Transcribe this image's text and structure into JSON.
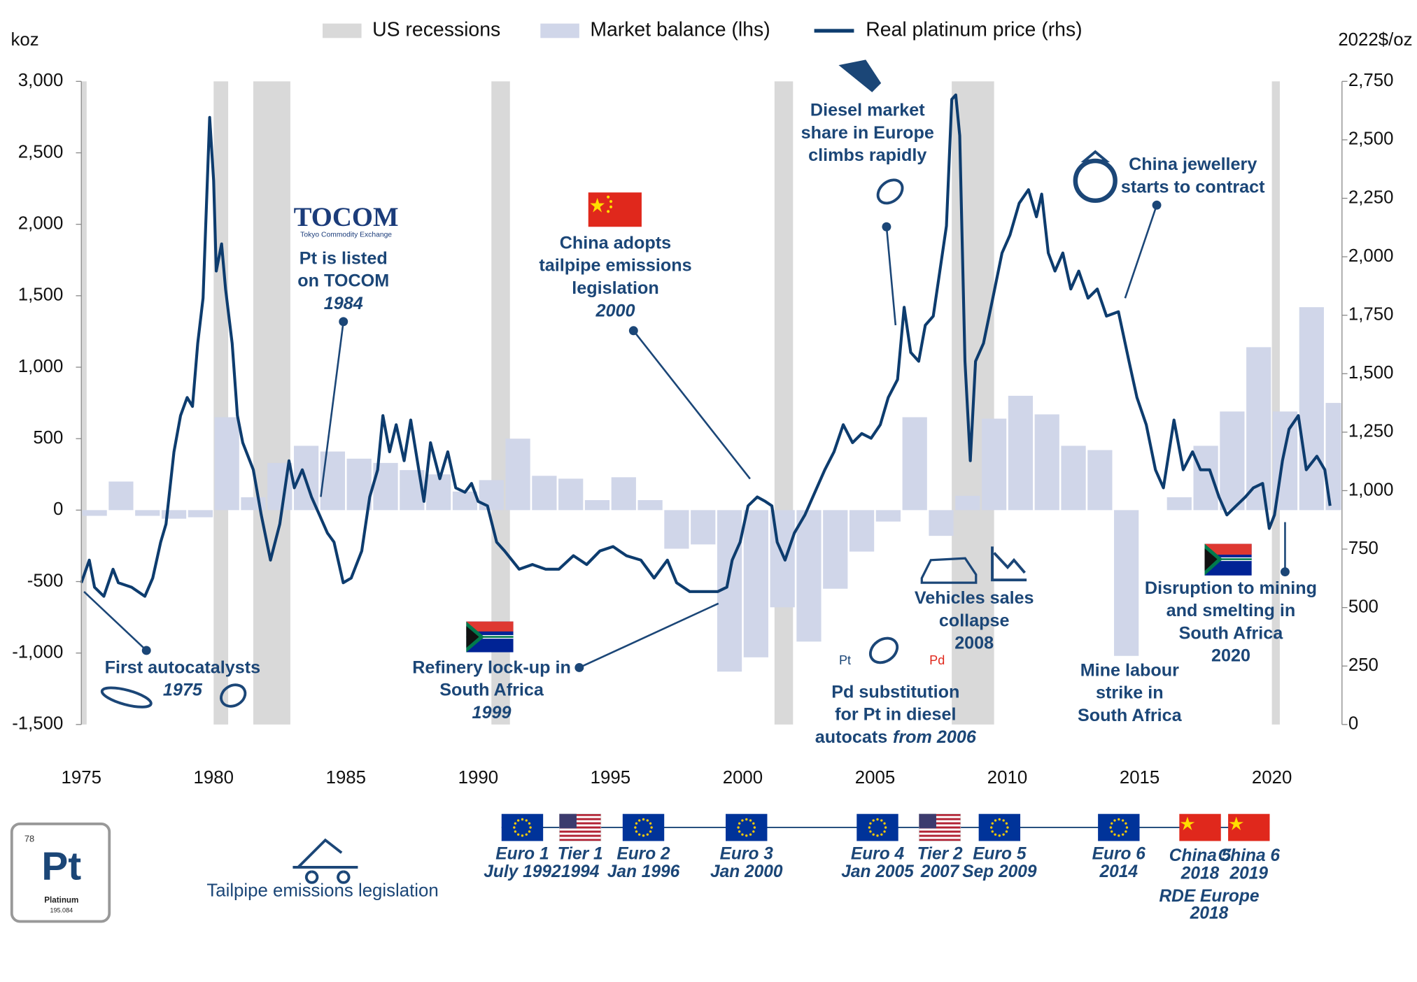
{
  "chart_data": {
    "type": "bar_line",
    "y_label": "koz",
    "y2_label": "2022$/oz",
    "xlim": [
      1975,
      2022.65
    ],
    "xticks": [
      1975,
      1980,
      1985,
      1990,
      1995,
      2000,
      2005,
      2010,
      2015,
      2020
    ],
    "ylim": [
      -1500,
      3000
    ],
    "yticks": [
      {
        "value": -1500,
        "label": "-1,500"
      },
      {
        "value": -1000,
        "label": "-1,000"
      },
      -500,
      0,
      500,
      {
        "value": 1000,
        "label": "1,000"
      },
      {
        "value": 1500,
        "label": "1,500"
      },
      {
        "value": 2000,
        "label": "2,000"
      },
      {
        "value": 2500,
        "label": "2,500"
      },
      {
        "value": 3000,
        "label": "3,000"
      }
    ],
    "y2lim": [
      0,
      2750
    ],
    "y2ticks": [
      0,
      250,
      500,
      750,
      {
        "value": 1000,
        "label": "1,000"
      },
      {
        "value": 1250,
        "label": "1,250"
      },
      {
        "value": 1500,
        "label": "1,500"
      },
      {
        "value": 1750,
        "label": "1,750"
      },
      {
        "value": 2000,
        "label": "2,000"
      },
      {
        "value": 2250,
        "label": "2,250"
      },
      {
        "value": 2500,
        "label": "2,500"
      },
      {
        "value": 2750,
        "label": "2,750"
      }
    ],
    "recessions": {
      "name": "US recessions",
      "color": "#d9d9d9",
      "spans": [
        [
          1975.0,
          1975.2
        ],
        [
          1980.0,
          1980.55
        ],
        [
          1981.5,
          1982.9
        ],
        [
          1990.5,
          1991.2
        ],
        [
          2001.2,
          2001.9
        ],
        [
          2007.9,
          2009.5
        ],
        [
          2020.0,
          2020.3
        ]
      ]
    },
    "series": [
      {
        "name": "Market balance (lhs)",
        "type": "bar",
        "color": "#d0d6e9",
        "x": [
          1975,
          1976,
          1977,
          1978,
          1979,
          1980,
          1981,
          1982,
          1983,
          1984,
          1985,
          1986,
          1987,
          1988,
          1989,
          1990,
          1991,
          1992,
          1993,
          1994,
          1995,
          1996,
          1997,
          1998,
          1999,
          2000,
          2001,
          2002,
          2003,
          2004,
          2005,
          2006,
          2007,
          2008,
          2009,
          2010,
          2011,
          2012,
          2013,
          2014,
          2015,
          2016,
          2017,
          2018,
          2019,
          2020,
          2021,
          2022
        ],
        "values": [
          -40,
          200,
          -40,
          -60,
          -50,
          650,
          90,
          330,
          450,
          410,
          360,
          330,
          280,
          250,
          130,
          210,
          500,
          240,
          220,
          70,
          230,
          70,
          -270,
          -240,
          -1130,
          -1030,
          -680,
          -920,
          -550,
          -290,
          -80,
          650,
          -180,
          100,
          640,
          800,
          670,
          450,
          420,
          -1020,
          0,
          90,
          450,
          690,
          1140,
          690,
          1420,
          750
        ]
      },
      {
        "name": "Real platinum price (rhs)",
        "type": "line",
        "axis": "y2",
        "color": "#0d3c6e",
        "x": [
          1975.0,
          1975.3,
          1975.5,
          1975.85,
          1976.2,
          1976.4,
          1976.9,
          1977.4,
          1977.7,
          1978.0,
          1978.2,
          1978.5,
          1978.75,
          1979.0,
          1979.2,
          1979.4,
          1979.6,
          1979.85,
          1980.0,
          1980.1,
          1980.3,
          1980.45,
          1980.7,
          1980.9,
          1981.1,
          1981.5,
          1981.8,
          1982.15,
          1982.5,
          1982.85,
          1983.05,
          1983.35,
          1983.7,
          1984.0,
          1984.3,
          1984.55,
          1984.9,
          1985.2,
          1985.6,
          1985.9,
          1986.2,
          1986.4,
          1986.65,
          1986.9,
          1987.2,
          1987.45,
          1987.7,
          1987.95,
          1988.2,
          1988.55,
          1988.85,
          1989.15,
          1989.5,
          1989.75,
          1990.0,
          1990.35,
          1990.7,
          1991.0,
          1991.55,
          1992.05,
          1992.55,
          1993.05,
          1993.6,
          1994.1,
          1994.6,
          1995.1,
          1995.6,
          1996.15,
          1996.65,
          1997.15,
          1997.5,
          1998.0,
          1998.5,
          1999.05,
          1999.4,
          1999.6,
          1999.9,
          2000.2,
          2000.55,
          2000.85,
          2001.1,
          2001.3,
          2001.6,
          2001.95,
          2002.35,
          2002.8,
          2003.1,
          2003.45,
          2003.8,
          2004.15,
          2004.5,
          2004.85,
          2005.2,
          2005.5,
          2005.85,
          2006.1,
          2006.35,
          2006.65,
          2006.9,
          2007.2,
          2007.45,
          2007.7,
          2007.9,
          2008.05,
          2008.2,
          2008.4,
          2008.6,
          2008.8,
          2009.1,
          2009.45,
          2009.8,
          2010.1,
          2010.45,
          2010.8,
          2011.1,
          2011.3,
          2011.55,
          2011.8,
          2012.1,
          2012.4,
          2012.7,
          2013.05,
          2013.4,
          2013.75,
          2014.2,
          2014.6,
          2014.9,
          2015.25,
          2015.6,
          2015.9,
          2016.3,
          2016.65,
          2017.0,
          2017.3,
          2017.65,
          2018.0,
          2018.3,
          2018.65,
          2019.0,
          2019.3,
          2019.65,
          2019.9,
          2020.1,
          2020.4,
          2020.65,
          2021.0,
          2021.3,
          2021.7,
          2022.0,
          2022.2
        ],
        "values": [
          606,
          703,
          587,
          548,
          664,
          606,
          587,
          548,
          626,
          780,
          857,
          1166,
          1321,
          1398,
          1360,
          1630,
          1823,
          2596,
          2325,
          1939,
          2055,
          1862,
          1630,
          1321,
          1205,
          1089,
          896,
          703,
          857,
          1128,
          1012,
          1089,
          973,
          896,
          819,
          780,
          606,
          626,
          742,
          973,
          1089,
          1321,
          1166,
          1282,
          1128,
          1302,
          1128,
          954,
          1205,
          1051,
          1166,
          1012,
          993,
          1031,
          954,
          935,
          780,
          742,
          664,
          684,
          664,
          664,
          722,
          684,
          742,
          761,
          722,
          703,
          626,
          703,
          606,
          568,
          568,
          568,
          587,
          703,
          780,
          935,
          973,
          954,
          935,
          780,
          703,
          819,
          896,
          1012,
          1089,
          1166,
          1282,
          1205,
          1244,
          1224,
          1282,
          1398,
          1475,
          1784,
          1591,
          1553,
          1707,
          1746,
          1939,
          2132,
          2673,
          2692,
          2518,
          1553,
          1128,
          1553,
          1630,
          1823,
          2016,
          2093,
          2229,
          2287,
          2171,
          2268,
          2016,
          1939,
          2016,
          1862,
          1939,
          1823,
          1862,
          1746,
          1765,
          1553,
          1398,
          1282,
          1089,
          1012,
          1302,
          1089,
          1166,
          1089,
          1089,
          973,
          896,
          935,
          973,
          1012,
          1031,
          838,
          896,
          1128,
          1263,
          1321,
          1089,
          1147,
          1089,
          935
        ]
      }
    ],
    "annotations": [
      {
        "lines": [
          "First autocatalysts"
        ],
        "italic": "1975"
      },
      {
        "logo": "TOCOM",
        "logo_sub": "Tokyo Commodity Exchange",
        "lines": [
          "Pt is listed",
          "on TOCOM"
        ],
        "italic": "1984"
      },
      {
        "lines": [
          "China adopts",
          "tailpipe emissions",
          "legislation"
        ],
        "italic": "2000"
      },
      {
        "lines": [
          "Refinery lock-up in",
          "South Africa"
        ],
        "italic": "1999"
      },
      {
        "lines": [
          "Diesel market",
          "share in Europe",
          "climbs rapidly"
        ]
      },
      {
        "lines": [
          "China jewellery",
          "starts to contract"
        ]
      },
      {
        "lines": [
          "Vehicles sales",
          "collapse",
          "2008"
        ]
      },
      {
        "icon_labels": [
          "Pt",
          "Pd"
        ],
        "lines": [
          "Pd substitution",
          "for Pt in diesel",
          "autocats"
        ],
        "italic": "from 2006"
      },
      {
        "lines": [
          "Mine labour",
          "strike in",
          "South Africa"
        ]
      },
      {
        "lines": [
          "Disruption to mining",
          "and smelting in",
          "South Africa",
          "2020"
        ]
      }
    ]
  },
  "legislation": {
    "title": "Tailpipe emissions legislation",
    "items": [
      {
        "flag": "eu",
        "lines": [
          "Euro 1",
          "July 1992"
        ]
      },
      {
        "flag": "us",
        "lines": [
          "Tier 1",
          "1994"
        ]
      },
      {
        "flag": "eu",
        "lines": [
          "Euro 2",
          "Jan 1996"
        ]
      },
      {
        "flag": "eu",
        "lines": [
          "Euro 3",
          "Jan 2000"
        ]
      },
      {
        "flag": "eu",
        "lines": [
          "Euro 4",
          "Jan 2005"
        ]
      },
      {
        "flag": "us",
        "lines": [
          "Tier 2",
          "2007"
        ]
      },
      {
        "flag": "eu",
        "lines": [
          "Euro 5",
          "Sep 2009"
        ]
      },
      {
        "flag": "eu",
        "lines": [
          "Euro 6",
          "2014"
        ]
      },
      {
        "flag": "cn",
        "lines": [
          "China 5",
          "2018"
        ]
      },
      {
        "flag": "cn",
        "lines": [
          "China 6",
          "2019"
        ]
      }
    ],
    "note": [
      "RDE Europe",
      "2018"
    ]
  },
  "element_tile": {
    "number": 78,
    "symbol": "Pt",
    "name": "Platinum",
    "mass": 195.084
  }
}
